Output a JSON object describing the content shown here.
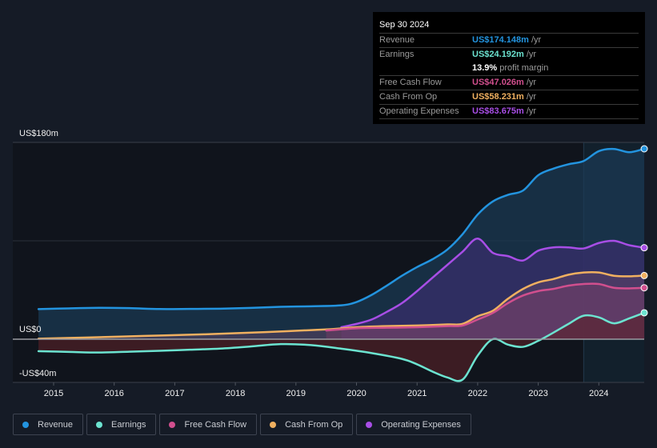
{
  "tooltip": {
    "date": "Sep 30 2024",
    "rows": [
      {
        "label": "Revenue",
        "value": "US$174.148m",
        "unit": "/yr",
        "color": "#2394df"
      },
      {
        "label": "Earnings",
        "value": "US$24.192m",
        "unit": "/yr",
        "color": "#6ce3d0"
      },
      {
        "label": "",
        "margin_value": "13.9%",
        "margin_text": "profit margin"
      },
      {
        "label": "Free Cash Flow",
        "value": "US$47.026m",
        "unit": "/yr",
        "color": "#d14f8e"
      },
      {
        "label": "Cash From Op",
        "value": "US$58.231m",
        "unit": "/yr",
        "color": "#f0b060"
      },
      {
        "label": "Operating Expenses",
        "value": "US$83.675m",
        "unit": "/yr",
        "color": "#a84ee6"
      }
    ]
  },
  "legend": [
    {
      "label": "Revenue",
      "color": "#2394df"
    },
    {
      "label": "Earnings",
      "color": "#6ce3d0"
    },
    {
      "label": "Free Cash Flow",
      "color": "#d14f8e"
    },
    {
      "label": "Cash From Op",
      "color": "#f0b060"
    },
    {
      "label": "Operating Expenses",
      "color": "#a84ee6"
    }
  ],
  "chart_data": {
    "type": "area",
    "title": "",
    "xlabel": "",
    "ylabel": "",
    "y_tick_labels": [
      "US$180m",
      "US$0",
      "-US$40m"
    ],
    "ylim": [
      -40,
      180
    ],
    "xlim": [
      2014.75,
      2024.75
    ],
    "x_ticks": [
      2015,
      2016,
      2017,
      2018,
      2019,
      2020,
      2021,
      2022,
      2023,
      2024
    ],
    "forecast_shading_from": 2023.75,
    "grid": true,
    "legend_position": "bottom",
    "series": [
      {
        "name": "Revenue",
        "color": "#2394df",
        "points": [
          [
            2014.75,
            27.5
          ],
          [
            2015.25,
            28.2
          ],
          [
            2015.75,
            28.7
          ],
          [
            2016.25,
            28.4
          ],
          [
            2016.75,
            27.6
          ],
          [
            2017.25,
            27.7
          ],
          [
            2017.75,
            27.9
          ],
          [
            2018.25,
            28.6
          ],
          [
            2018.75,
            29.6
          ],
          [
            2019.25,
            30.1
          ],
          [
            2019.75,
            31.0
          ],
          [
            2020.0,
            34.0
          ],
          [
            2020.25,
            40.5
          ],
          [
            2020.5,
            49.0
          ],
          [
            2020.75,
            58.0
          ],
          [
            2021.0,
            66.0
          ],
          [
            2021.25,
            73.0
          ],
          [
            2021.5,
            82.0
          ],
          [
            2021.75,
            96.0
          ],
          [
            2022.0,
            114.0
          ],
          [
            2022.25,
            126.0
          ],
          [
            2022.5,
            132.0
          ],
          [
            2022.75,
            136.0
          ],
          [
            2023.0,
            150.0
          ],
          [
            2023.25,
            156.0
          ],
          [
            2023.5,
            160.0
          ],
          [
            2023.75,
            163.0
          ],
          [
            2024.0,
            172.0
          ],
          [
            2024.25,
            174.0
          ],
          [
            2024.5,
            171.0
          ],
          [
            2024.75,
            174.148
          ]
        ]
      },
      {
        "name": "Operating Expenses",
        "color": "#a84ee6",
        "points": [
          [
            2019.75,
            11.0
          ],
          [
            2020.0,
            14.0
          ],
          [
            2020.25,
            18.0
          ],
          [
            2020.5,
            25.0
          ],
          [
            2020.75,
            33.0
          ],
          [
            2021.0,
            44.0
          ],
          [
            2021.25,
            56.0
          ],
          [
            2021.5,
            68.0
          ],
          [
            2021.75,
            80.0
          ],
          [
            2022.0,
            92.0
          ],
          [
            2022.25,
            79.0
          ],
          [
            2022.5,
            76.0
          ],
          [
            2022.75,
            72.0
          ],
          [
            2023.0,
            81.0
          ],
          [
            2023.25,
            84.0
          ],
          [
            2023.5,
            84.0
          ],
          [
            2023.75,
            83.0
          ],
          [
            2024.0,
            88.0
          ],
          [
            2024.25,
            90.0
          ],
          [
            2024.5,
            86.0
          ],
          [
            2024.75,
            83.675
          ]
        ]
      },
      {
        "name": "Cash From Op",
        "color": "#f0b060",
        "points": [
          [
            2014.75,
            0.5
          ],
          [
            2015.5,
            1.5
          ],
          [
            2016.5,
            3.0
          ],
          [
            2017.5,
            4.5
          ],
          [
            2018.5,
            6.5
          ],
          [
            2019.5,
            9.0
          ],
          [
            2020.0,
            11.0
          ],
          [
            2020.5,
            12.0
          ],
          [
            2021.0,
            12.5
          ],
          [
            2021.5,
            13.5
          ],
          [
            2021.75,
            14.0
          ],
          [
            2022.0,
            21.0
          ],
          [
            2022.25,
            26.0
          ],
          [
            2022.5,
            37.0
          ],
          [
            2022.75,
            46.0
          ],
          [
            2023.0,
            52.0
          ],
          [
            2023.25,
            55.0
          ],
          [
            2023.5,
            59.0
          ],
          [
            2023.75,
            61.0
          ],
          [
            2024.0,
            61.0
          ],
          [
            2024.25,
            58.0
          ],
          [
            2024.5,
            57.5
          ],
          [
            2024.75,
            58.231
          ]
        ]
      },
      {
        "name": "Free Cash Flow",
        "color": "#d14f8e",
        "points": [
          [
            2019.5,
            8.0
          ],
          [
            2020.0,
            10.0
          ],
          [
            2020.5,
            10.5
          ],
          [
            2021.0,
            11.0
          ],
          [
            2021.5,
            12.0
          ],
          [
            2021.75,
            12.5
          ],
          [
            2022.0,
            18.0
          ],
          [
            2022.25,
            24.0
          ],
          [
            2022.5,
            33.0
          ],
          [
            2022.75,
            40.0
          ],
          [
            2023.0,
            44.0
          ],
          [
            2023.25,
            46.0
          ],
          [
            2023.5,
            49.0
          ],
          [
            2023.75,
            50.5
          ],
          [
            2024.0,
            50.5
          ],
          [
            2024.25,
            47.0
          ],
          [
            2024.5,
            46.5
          ],
          [
            2024.75,
            47.026
          ]
        ]
      },
      {
        "name": "Earnings",
        "color": "#6ce3d0",
        "points": [
          [
            2014.75,
            -11.0
          ],
          [
            2015.25,
            -11.6
          ],
          [
            2015.75,
            -12.2
          ],
          [
            2016.25,
            -11.4
          ],
          [
            2016.75,
            -10.6
          ],
          [
            2017.25,
            -9.6
          ],
          [
            2017.75,
            -8.6
          ],
          [
            2018.25,
            -6.7
          ],
          [
            2018.75,
            -4.5
          ],
          [
            2019.25,
            -5.4
          ],
          [
            2019.75,
            -8.7
          ],
          [
            2020.25,
            -12.7
          ],
          [
            2020.75,
            -18.0
          ],
          [
            2021.0,
            -23.0
          ],
          [
            2021.25,
            -29.5
          ],
          [
            2021.5,
            -35.0
          ],
          [
            2021.75,
            -37.0
          ],
          [
            2022.0,
            -15.0
          ],
          [
            2022.25,
            0.0
          ],
          [
            2022.5,
            -5.0
          ],
          [
            2022.75,
            -7.0
          ],
          [
            2023.0,
            -1.5
          ],
          [
            2023.25,
            6.0
          ],
          [
            2023.5,
            14.0
          ],
          [
            2023.75,
            21.5
          ],
          [
            2024.0,
            20.0
          ],
          [
            2024.25,
            14.5
          ],
          [
            2024.5,
            19.0
          ],
          [
            2024.75,
            24.192
          ]
        ]
      }
    ]
  }
}
